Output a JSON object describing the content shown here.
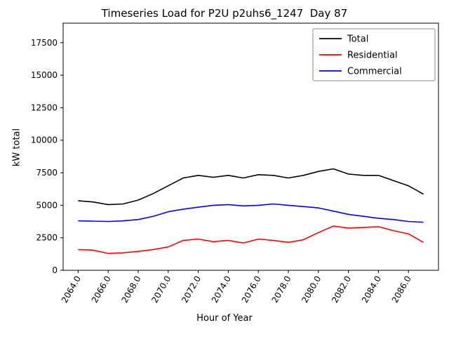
{
  "chart_data": {
    "type": "line",
    "title": "Timeseries Load for P2U p2uhs6_1247  Day 87",
    "xlabel": "Hour of Year",
    "ylabel": "kW total",
    "xlim": [
      2063,
      2088
    ],
    "ylim": [
      0,
      19000
    ],
    "xticks": [
      2064,
      2066,
      2068,
      2070,
      2072,
      2074,
      2076,
      2078,
      2080,
      2082,
      2084,
      2086
    ],
    "xtick_labels": [
      "2064.0",
      "2066.0",
      "2068.0",
      "2070.0",
      "2072.0",
      "2074.0",
      "2076.0",
      "2078.0",
      "2080.0",
      "2082.0",
      "2084.0",
      "2086.0"
    ],
    "yticks": [
      0,
      2500,
      5000,
      7500,
      10000,
      12500,
      15000,
      17500
    ],
    "ytick_labels": [
      "0",
      "2500",
      "5000",
      "7500",
      "10000",
      "12500",
      "15000",
      "17500"
    ],
    "legend_position": "upper right",
    "grid": false,
    "x": [
      2064,
      2065,
      2066,
      2067,
      2068,
      2069,
      2070,
      2071,
      2072,
      2073,
      2074,
      2075,
      2076,
      2077,
      2078,
      2079,
      2080,
      2081,
      2082,
      2083,
      2084,
      2085,
      2086,
      2087
    ],
    "series": [
      {
        "name": "Total",
        "color": "#000000",
        "values": [
          5350,
          5250,
          5050,
          5100,
          5400,
          5900,
          6500,
          7100,
          7300,
          7150,
          7300,
          7100,
          7350,
          7300,
          7100,
          7300,
          7600,
          7800,
          7400,
          7300,
          7300,
          6900,
          6500,
          5850
        ]
      },
      {
        "name": "Residential",
        "color": "#ff0000",
        "values": [
          1600,
          1550,
          1300,
          1350,
          1450,
          1600,
          1800,
          2300,
          2400,
          2200,
          2300,
          2100,
          2400,
          2300,
          2150,
          2350,
          2900,
          3400,
          3250,
          3300,
          3350,
          3050,
          2800,
          2150
        ]
      },
      {
        "name": "Commercial",
        "color": "#0000ff",
        "values": [
          3800,
          3780,
          3750,
          3800,
          3900,
          4150,
          4500,
          4700,
          4850,
          5000,
          5050,
          4950,
          5000,
          5100,
          5000,
          4900,
          4800,
          4550,
          4300,
          4150,
          4000,
          3900,
          3750,
          3700
        ]
      }
    ]
  }
}
